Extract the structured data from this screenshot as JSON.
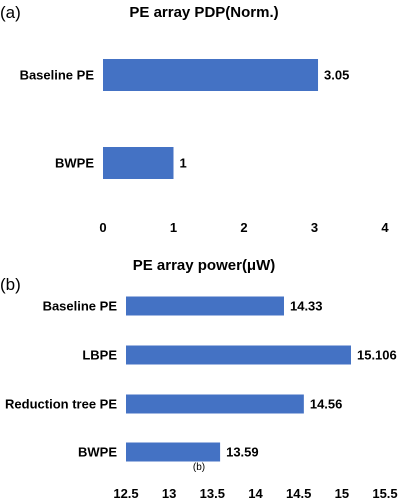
{
  "chart_data": [
    {
      "type": "bar",
      "orientation": "horizontal",
      "panel_label": "(a)",
      "title": "PE array PDP(Norm.)",
      "categories": [
        "Baseline PE",
        "BWPE"
      ],
      "values": [
        3.05,
        1
      ],
      "data_labels": [
        "3.05",
        "1"
      ],
      "xlim": [
        0,
        4
      ],
      "xticks": [
        "0",
        "1",
        "2",
        "3",
        "4"
      ],
      "grid": false,
      "color": "#4472c4"
    },
    {
      "type": "bar",
      "orientation": "horizontal",
      "panel_label": "(b)",
      "title": "PE array power(μW)",
      "categories": [
        "Baseline PE",
        "LBPE",
        "Reduction tree PE",
        "BWPE"
      ],
      "values": [
        14.33,
        15.106,
        14.56,
        13.59
      ],
      "data_labels": [
        "14.33",
        "15.106",
        "14.56",
        "13.59"
      ],
      "xlim": [
        12.5,
        15.5
      ],
      "xticks": [
        "12.5",
        "13",
        "13.5",
        "14",
        "14.5",
        "15",
        "15.5"
      ],
      "note": "(b)",
      "grid": false,
      "color": "#4472c4"
    }
  ]
}
